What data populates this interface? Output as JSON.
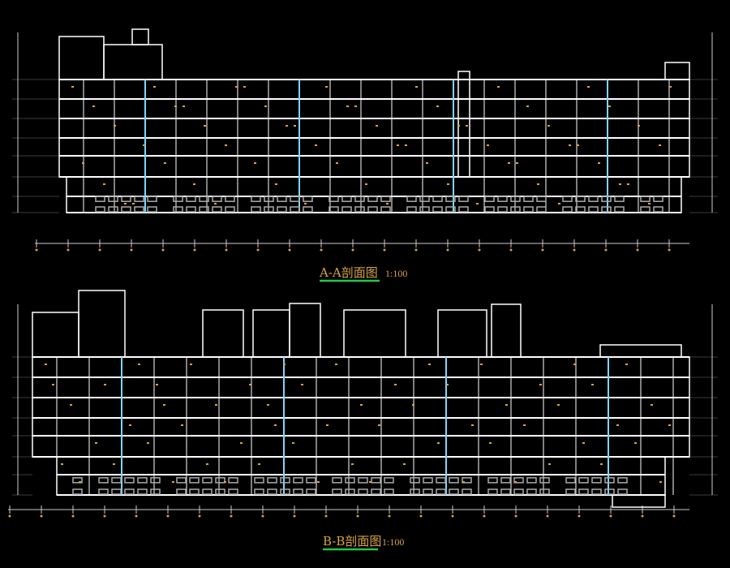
{
  "sections": [
    {
      "title": "A-A剖面图",
      "scale": "1:100"
    },
    {
      "title": "B-B剖面图",
      "scale": "1:100"
    }
  ]
}
